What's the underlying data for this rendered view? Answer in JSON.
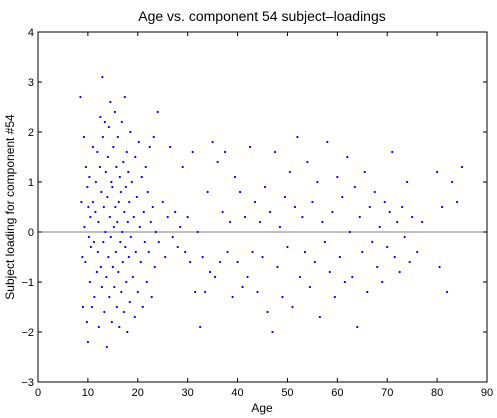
{
  "chart_data": {
    "type": "scatter",
    "title": "Age vs. component 54 subject–loadings",
    "xlabel": "Age",
    "ylabel": "Subject loading for component #54",
    "xlim": [
      0,
      90
    ],
    "ylim": [
      -3,
      4
    ],
    "xticks": [
      "0",
      "10",
      "20",
      "30",
      "40",
      "50",
      "60",
      "70",
      "80",
      "90"
    ],
    "yticks": [
      "−3",
      "−2",
      "−1",
      "0",
      "1",
      "2",
      "3",
      "4"
    ],
    "grid": false,
    "legend": "none",
    "reference_line_y": 0,
    "marker_color": "#0000ff",
    "reference_line_color": "#808080",
    "points": [
      [
        8.5,
        2.7
      ],
      [
        8.7,
        0.6
      ],
      [
        8.9,
        -0.5
      ],
      [
        9.0,
        -1.5
      ],
      [
        9.2,
        1.9
      ],
      [
        9.3,
        0.1
      ],
      [
        9.5,
        -0.6
      ],
      [
        9.6,
        1.3
      ],
      [
        9.8,
        -1.8
      ],
      [
        9.9,
        0.9
      ],
      [
        10.0,
        -2.2
      ],
      [
        10.1,
        0.5
      ],
      [
        10.2,
        -0.1
      ],
      [
        10.3,
        1.1
      ],
      [
        10.4,
        -1.0
      ],
      [
        10.5,
        0.3
      ],
      [
        10.6,
        -0.3
      ],
      [
        10.8,
        -1.5
      ],
      [
        11.0,
        0.6
      ],
      [
        11.0,
        1.7
      ],
      [
        11.2,
        -0.2
      ],
      [
        11.3,
        -1.3
      ],
      [
        11.5,
        0.4
      ],
      [
        11.6,
        1.0
      ],
      [
        11.8,
        -0.8
      ],
      [
        11.9,
        1.6
      ],
      [
        12.0,
        -0.4
      ],
      [
        12.1,
        0.2
      ],
      [
        12.2,
        -1.9
      ],
      [
        12.4,
        1.3
      ],
      [
        12.5,
        2.3
      ],
      [
        12.6,
        -0.7
      ],
      [
        12.7,
        0.8
      ],
      [
        12.8,
        -1.1
      ],
      [
        12.9,
        3.1
      ],
      [
        13.0,
        1.9
      ],
      [
        13.1,
        -0.2
      ],
      [
        13.2,
        0.5
      ],
      [
        13.3,
        -1.6
      ],
      [
        13.4,
        2.2
      ],
      [
        13.5,
        0.0
      ],
      [
        13.6,
        1.2
      ],
      [
        13.7,
        -0.9
      ],
      [
        13.8,
        -2.3
      ],
      [
        13.9,
        0.7
      ],
      [
        14.0,
        1.5
      ],
      [
        14.1,
        -0.5
      ],
      [
        14.2,
        2.1
      ],
      [
        14.3,
        -1.3
      ],
      [
        14.4,
        0.3
      ],
      [
        14.5,
        2.6
      ],
      [
        14.6,
        -0.1
      ],
      [
        14.7,
        1.0
      ],
      [
        14.8,
        -1.8
      ],
      [
        14.9,
        0.9
      ],
      [
        15.0,
        -0.7
      ],
      [
        15.1,
        1.7
      ],
      [
        15.2,
        0.1
      ],
      [
        15.3,
        -1.1
      ],
      [
        15.4,
        2.4
      ],
      [
        15.5,
        0.5
      ],
      [
        15.6,
        -0.4
      ],
      [
        15.7,
        1.3
      ],
      [
        15.8,
        -1.5
      ],
      [
        15.9,
        0.2
      ],
      [
        16.0,
        1.9
      ],
      [
        16.1,
        -0.8
      ],
      [
        16.2,
        0.6
      ],
      [
        16.3,
        -1.9
      ],
      [
        16.4,
        1.1
      ],
      [
        16.5,
        -0.2
      ],
      [
        16.6,
        0.8
      ],
      [
        16.7,
        -1.2
      ],
      [
        16.8,
        2.2
      ],
      [
        16.9,
        0.0
      ],
      [
        17.0,
        -0.6
      ],
      [
        17.1,
        1.4
      ],
      [
        17.2,
        -1.6
      ],
      [
        17.3,
        0.4
      ],
      [
        17.4,
        2.7
      ],
      [
        17.5,
        -0.3
      ],
      [
        17.6,
        0.9
      ],
      [
        17.7,
        -1.0
      ],
      [
        17.8,
        1.6
      ],
      [
        17.9,
        -2.0
      ],
      [
        18.0,
        0.2
      ],
      [
        18.1,
        1.2
      ],
      [
        18.2,
        -0.5
      ],
      [
        18.3,
        0.6
      ],
      [
        18.4,
        -1.4
      ],
      [
        18.5,
        2.0
      ],
      [
        18.6,
        -0.1
      ],
      [
        18.8,
        1.0
      ],
      [
        19.0,
        -0.9
      ],
      [
        19.2,
        0.3
      ],
      [
        19.4,
        -1.7
      ],
      [
        19.5,
        1.5
      ],
      [
        19.6,
        -0.4
      ],
      [
        19.8,
        0.7
      ],
      [
        20.0,
        -1.2
      ],
      [
        20.2,
        1.8
      ],
      [
        20.4,
        0.1
      ],
      [
        20.6,
        -0.6
      ],
      [
        20.8,
        1.1
      ],
      [
        21.0,
        -1.5
      ],
      [
        21.2,
        0.4
      ],
      [
        21.4,
        -0.2
      ],
      [
        21.6,
        1.3
      ],
      [
        21.8,
        -1.0
      ],
      [
        22.0,
        0.8
      ],
      [
        22.2,
        -0.4
      ],
      [
        22.4,
        1.7
      ],
      [
        22.6,
        0.2
      ],
      [
        22.8,
        -1.3
      ],
      [
        23.0,
        0.5
      ],
      [
        23.2,
        1.9
      ],
      [
        23.4,
        -0.7
      ],
      [
        23.6,
        0.0
      ],
      [
        24.0,
        2.4
      ],
      [
        24.2,
        -0.2
      ],
      [
        25.0,
        0.6
      ],
      [
        25.5,
        -0.5
      ],
      [
        26.0,
        0.3
      ],
      [
        26.5,
        1.7
      ],
      [
        27.0,
        -0.1
      ],
      [
        27.5,
        0.4
      ],
      [
        28.0,
        -0.3
      ],
      [
        28.5,
        0.1
      ],
      [
        29.0,
        1.3
      ],
      [
        29.5,
        -0.4
      ],
      [
        30.0,
        0.3
      ],
      [
        30.5,
        -0.6
      ],
      [
        31.0,
        1.6
      ],
      [
        31.5,
        -1.2
      ],
      [
        32.0,
        0.0
      ],
      [
        32.5,
        -1.9
      ],
      [
        33.0,
        -0.5
      ],
      [
        33.5,
        -1.2
      ],
      [
        34.0,
        0.8
      ],
      [
        34.5,
        -0.8
      ],
      [
        35.0,
        1.8
      ],
      [
        35.5,
        -0.9
      ],
      [
        36.0,
        1.4
      ],
      [
        36.5,
        -0.6
      ],
      [
        37.0,
        0.4
      ],
      [
        37.5,
        1.6
      ],
      [
        38.0,
        -0.4
      ],
      [
        38.5,
        0.2
      ],
      [
        39.0,
        -1.3
      ],
      [
        39.5,
        1.1
      ],
      [
        40.0,
        -0.6
      ],
      [
        40.5,
        0.8
      ],
      [
        41.0,
        -1.1
      ],
      [
        41.5,
        0.3
      ],
      [
        42.0,
        -0.9
      ],
      [
        42.5,
        1.7
      ],
      [
        43.0,
        -0.4
      ],
      [
        43.5,
        0.6
      ],
      [
        44.0,
        -1.2
      ],
      [
        44.5,
        0.2
      ],
      [
        45.0,
        -0.5
      ],
      [
        45.5,
        0.9
      ],
      [
        46.0,
        -1.6
      ],
      [
        46.5,
        0.4
      ],
      [
        47.0,
        -2.0
      ],
      [
        47.5,
        1.6
      ],
      [
        48.0,
        -0.7
      ],
      [
        48.5,
        0.1
      ],
      [
        49.0,
        -1.3
      ],
      [
        49.5,
        0.7
      ],
      [
        50.0,
        -0.3
      ],
      [
        50.5,
        1.2
      ],
      [
        51.0,
        -1.5
      ],
      [
        51.5,
        0.5
      ],
      [
        52.0,
        1.9
      ],
      [
        52.5,
        -0.9
      ],
      [
        53.0,
        0.3
      ],
      [
        53.5,
        -0.4
      ],
      [
        54.0,
        1.4
      ],
      [
        54.5,
        -1.1
      ],
      [
        55.0,
        0.6
      ],
      [
        55.5,
        -0.6
      ],
      [
        56.0,
        1.0
      ],
      [
        56.5,
        -1.7
      ],
      [
        57.0,
        0.2
      ],
      [
        57.5,
        -0.2
      ],
      [
        58.0,
        1.8
      ],
      [
        58.5,
        -0.8
      ],
      [
        59.0,
        0.4
      ],
      [
        59.5,
        -1.3
      ],
      [
        60.0,
        1.1
      ],
      [
        60.5,
        -0.5
      ],
      [
        61.0,
        0.7
      ],
      [
        61.5,
        -1.0
      ],
      [
        62.0,
        1.5
      ],
      [
        62.5,
        0.0
      ],
      [
        63.0,
        -0.9
      ],
      [
        63.5,
        0.9
      ],
      [
        64.0,
        -1.9
      ],
      [
        64.5,
        0.3
      ],
      [
        65.0,
        -0.4
      ],
      [
        65.5,
        1.2
      ],
      [
        66.0,
        -1.2
      ],
      [
        66.5,
        0.5
      ],
      [
        67.0,
        -0.2
      ],
      [
        67.5,
        0.8
      ],
      [
        68.0,
        -0.7
      ],
      [
        68.5,
        0.1
      ],
      [
        69.0,
        -1.0
      ],
      [
        69.5,
        0.6
      ],
      [
        70.0,
        -0.3
      ],
      [
        70.5,
        0.4
      ],
      [
        71.0,
        1.6
      ],
      [
        71.5,
        -0.5
      ],
      [
        72.0,
        0.2
      ],
      [
        72.5,
        -0.8
      ],
      [
        73.0,
        0.5
      ],
      [
        73.5,
        -0.1
      ],
      [
        74.0,
        1.0
      ],
      [
        74.5,
        -0.6
      ],
      [
        75.0,
        0.3
      ],
      [
        76.0,
        -0.4
      ],
      [
        77.0,
        0.2
      ],
      [
        80.0,
        1.2
      ],
      [
        80.5,
        -0.7
      ],
      [
        81.0,
        0.5
      ],
      [
        82.0,
        -1.2
      ],
      [
        83.0,
        1.0
      ],
      [
        84.0,
        0.6
      ],
      [
        85.0,
        1.3
      ]
    ]
  }
}
